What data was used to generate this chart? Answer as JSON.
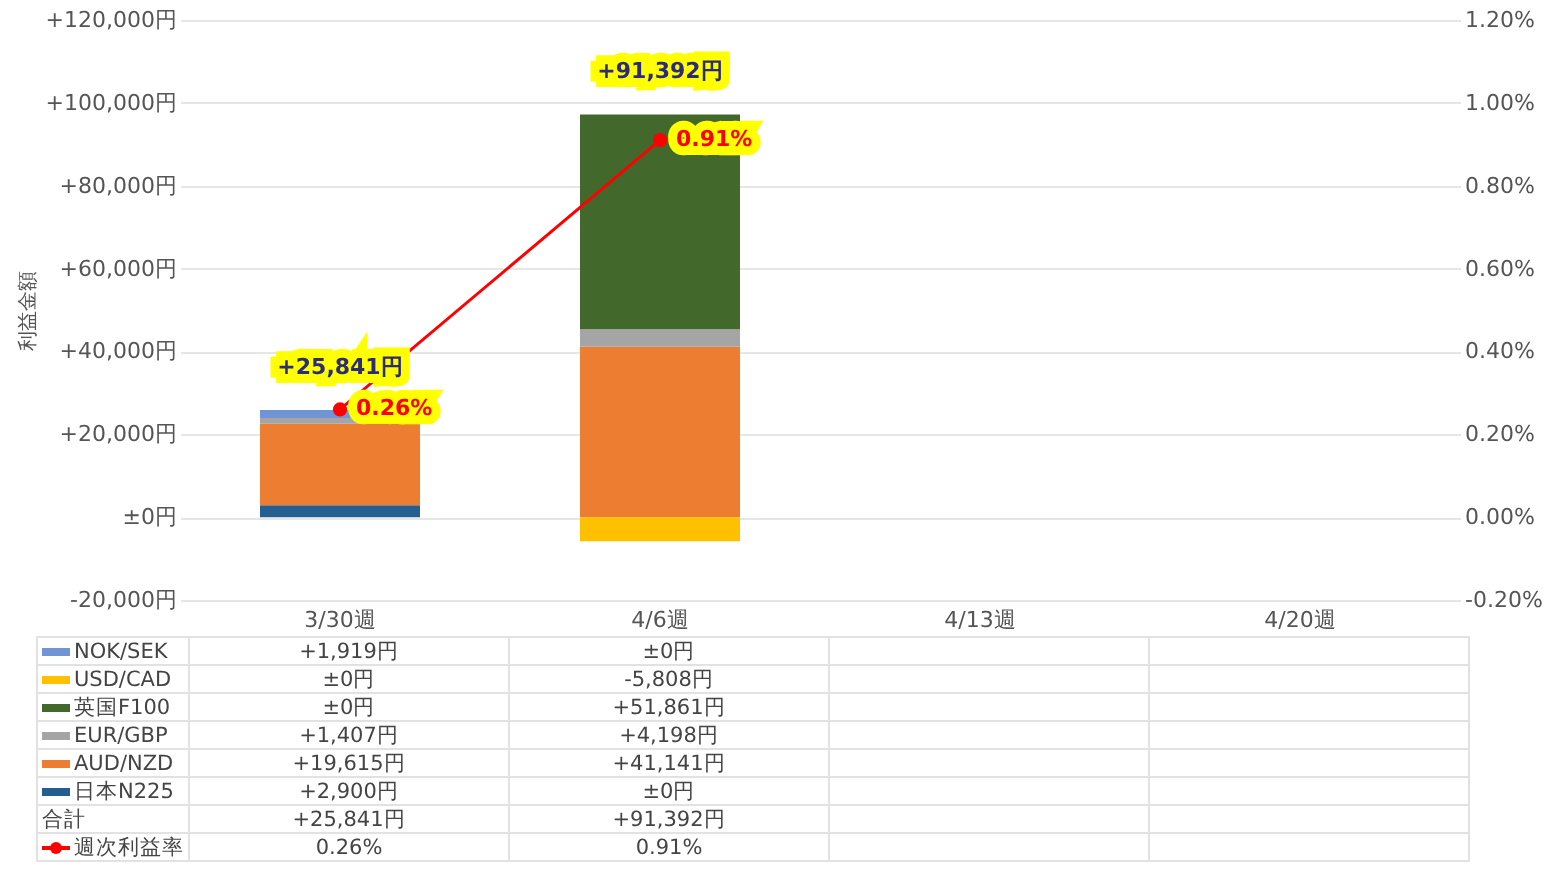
{
  "chart_data": {
    "type": "bar",
    "stacked": true,
    "ylabel": "利益金額",
    "categories": [
      "3/30週",
      "4/6週",
      "4/13週",
      "4/20週"
    ],
    "series": [
      {
        "name": "日本N225",
        "color": "#255e91",
        "values": [
          2900,
          0,
          null,
          null
        ],
        "value_labels": [
          "+2,900円",
          "±0円",
          null,
          null
        ]
      },
      {
        "name": "AUD/NZD",
        "color": "#ed7d31",
        "values": [
          19615,
          41141,
          null,
          null
        ],
        "value_labels": [
          "+19,615円",
          "+41,141円",
          null,
          null
        ]
      },
      {
        "name": "EUR/GBP",
        "color": "#a5a5a5",
        "values": [
          1407,
          4198,
          null,
          null
        ],
        "value_labels": [
          "+1,407円",
          "+4,198円",
          null,
          null
        ]
      },
      {
        "name": "英国F100",
        "color": "#43682b",
        "values": [
          0,
          51861,
          null,
          null
        ],
        "value_labels": [
          "±0円",
          "+51,861円",
          null,
          null
        ]
      },
      {
        "name": "USD/CAD",
        "color": "#ffc000",
        "values": [
          0,
          -5808,
          null,
          null
        ],
        "value_labels": [
          "±0円",
          "-5,808円",
          null,
          null
        ]
      },
      {
        "name": "NOK/SEK",
        "color": "#7094d4",
        "values": [
          1919,
          0,
          null,
          null
        ],
        "value_labels": [
          "+1,919円",
          "±0円",
          null,
          null
        ]
      },
      {
        "name": "週次利益率",
        "type": "line",
        "axis": "y2",
        "color": "#ff0000",
        "values": [
          0.26,
          0.91,
          null,
          null
        ],
        "value_labels": [
          "0.26%",
          "0.91%",
          null,
          null
        ]
      }
    ],
    "totals": [
      "+25,841円",
      "+91,392円",
      null,
      null
    ],
    "annotations": [
      "合計"
    ],
    "ylim": [
      -20000,
      120000
    ],
    "yticks": [
      {
        "value": -20000,
        "label": "-20,000円"
      },
      {
        "value": 0,
        "label": "±0円"
      },
      {
        "value": 20000,
        "label": "+20,000円"
      },
      {
        "value": 40000,
        "label": "+40,000円"
      },
      {
        "value": 60000,
        "label": "+60,000円"
      },
      {
        "value": 80000,
        "label": "+80,000円"
      },
      {
        "value": 100000,
        "label": "+100,000円"
      },
      {
        "value": 120000,
        "label": "+120,000円"
      }
    ],
    "y2lim": [
      -0.2,
      1.2
    ],
    "y2ticks": [
      {
        "value": -0.2,
        "label": "-0.20%"
      },
      {
        "value": 0,
        "label": "0.00%"
      },
      {
        "value": 0.2,
        "label": "0.20%"
      },
      {
        "value": 0.4,
        "label": "0.40%"
      },
      {
        "value": 0.6,
        "label": "0.60%"
      },
      {
        "value": 0.8,
        "label": "0.80%"
      },
      {
        "value": 1,
        "label": "1.00%"
      },
      {
        "value": 1.2,
        "label": "1.20%"
      }
    ],
    "grid": "y",
    "legend": "bottom",
    "marker": "circle",
    "line_style": "solid"
  }
}
